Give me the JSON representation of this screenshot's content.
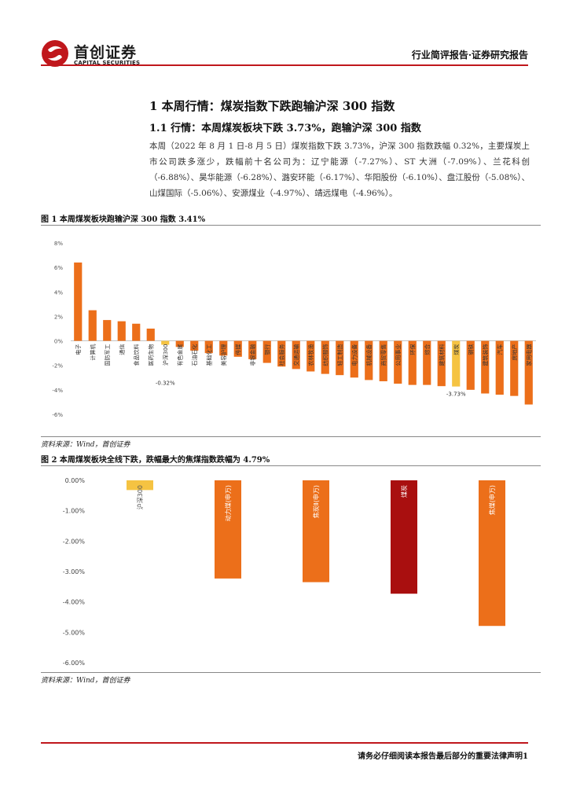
{
  "header": {
    "logo_cn": "首创证券",
    "logo_en": "CAPITAL SECURITIES",
    "report_type": "行业简评报告·证券研究报告"
  },
  "section": {
    "h1": "1 本周行情：煤炭指数下跌跑输沪深 300 指数",
    "h2": "1.1 行情：本周煤炭板块下跌 3.73%，跑输沪深 300 指数",
    "paragraph": "本周（2022 年 8 月 1 日-8 月 5 日）煤炭指数下跌 3.73%，沪深 300 指数跌幅 0.32%，主要煤炭上市公司跌多涨少，跌幅前十名公司为：辽宁能源（-7.27%）、ST 大洲（-7.09%）、兰花科创（-6.88%）、昊华能源（-6.28%）、潞安环能（-6.17%）、华阳股份（-6.10%）、盘江股份（-5.08%）、山煤国际（-5.06%）、安源煤业（-4.97%）、靖远煤电（-4.96%）。"
  },
  "figure1": {
    "title": "图 1 本周煤炭板块跑输沪深 300 指数 3.41%",
    "source": "资料来源：Wind，首创证券"
  },
  "figure2": {
    "title": "图 2 本周煤炭板块全线下跌，跌幅最大的焦煤指数跌幅为 4.79%",
    "source": "资料来源：Wind，首创证券"
  },
  "footer": {
    "text": "请务必仔细阅读本报告最后部分的重要法律声明1"
  },
  "colors": {
    "brand_red": "#c0171c",
    "bar_orange": "#ec6f1a",
    "bar_yellow": "#f5c342",
    "bar_darkred": "#a90f0f"
  },
  "chart_data": [
    {
      "type": "bar",
      "ylim": [
        -6,
        8
      ],
      "yticks": [
        8,
        6,
        4,
        2,
        0,
        -2,
        -4,
        -6
      ],
      "ytick_suffix": "%",
      "grid": false,
      "categories": [
        "电子",
        "计算机",
        "国防军工",
        "通信",
        "食品饮料",
        "医药生物",
        "沪深300",
        "有色金属",
        "石油石化",
        "基础化工",
        "美容护理",
        "传媒",
        "非银金融",
        "银行",
        "社会服务",
        "交通运输",
        "农林牧渔",
        "纺织服饰",
        "轻工制造",
        "电力设备",
        "机械设备",
        "商贸零售",
        "公用事业",
        "环保",
        "综合",
        "建筑材料",
        "煤炭",
        "钢铁",
        "建筑装饰",
        "汽车",
        "房地产",
        "家用电器"
      ],
      "values": [
        6.4,
        2.5,
        1.7,
        1.6,
        1.4,
        1.0,
        -0.32,
        -0.5,
        -0.8,
        -1.0,
        -1.2,
        -1.3,
        -1.5,
        -1.8,
        -2.1,
        -2.3,
        -2.5,
        -2.7,
        -2.8,
        -3.0,
        -3.2,
        -3.3,
        -3.5,
        -3.6,
        -3.6,
        -3.7,
        -3.73,
        -4.0,
        -4.3,
        -4.4,
        -4.5,
        -5.2
      ],
      "highlight": {
        "沪深300": "yellow",
        "煤炭": "yellow"
      },
      "data_labels": [
        {
          "category": "沪深300",
          "text": "-0.32%"
        },
        {
          "category": "煤炭",
          "text": "-3.73%"
        }
      ]
    },
    {
      "type": "bar",
      "ylim": [
        -6,
        0
      ],
      "yticks": [
        "0.00%",
        "-1.00%",
        "-2.00%",
        "-3.00%",
        "-4.00%",
        "-5.00%",
        "-6.00%"
      ],
      "grid": false,
      "categories": [
        "沪深300",
        "动力煤(申万)",
        "焦炭Ⅱ(申万)",
        "煤炭",
        "焦煤(申万)"
      ],
      "values": [
        -0.32,
        -3.23,
        -3.35,
        -3.73,
        -4.79
      ],
      "bar_colors": [
        "yellow",
        "orange",
        "orange",
        "darkred",
        "orange"
      ]
    }
  ]
}
